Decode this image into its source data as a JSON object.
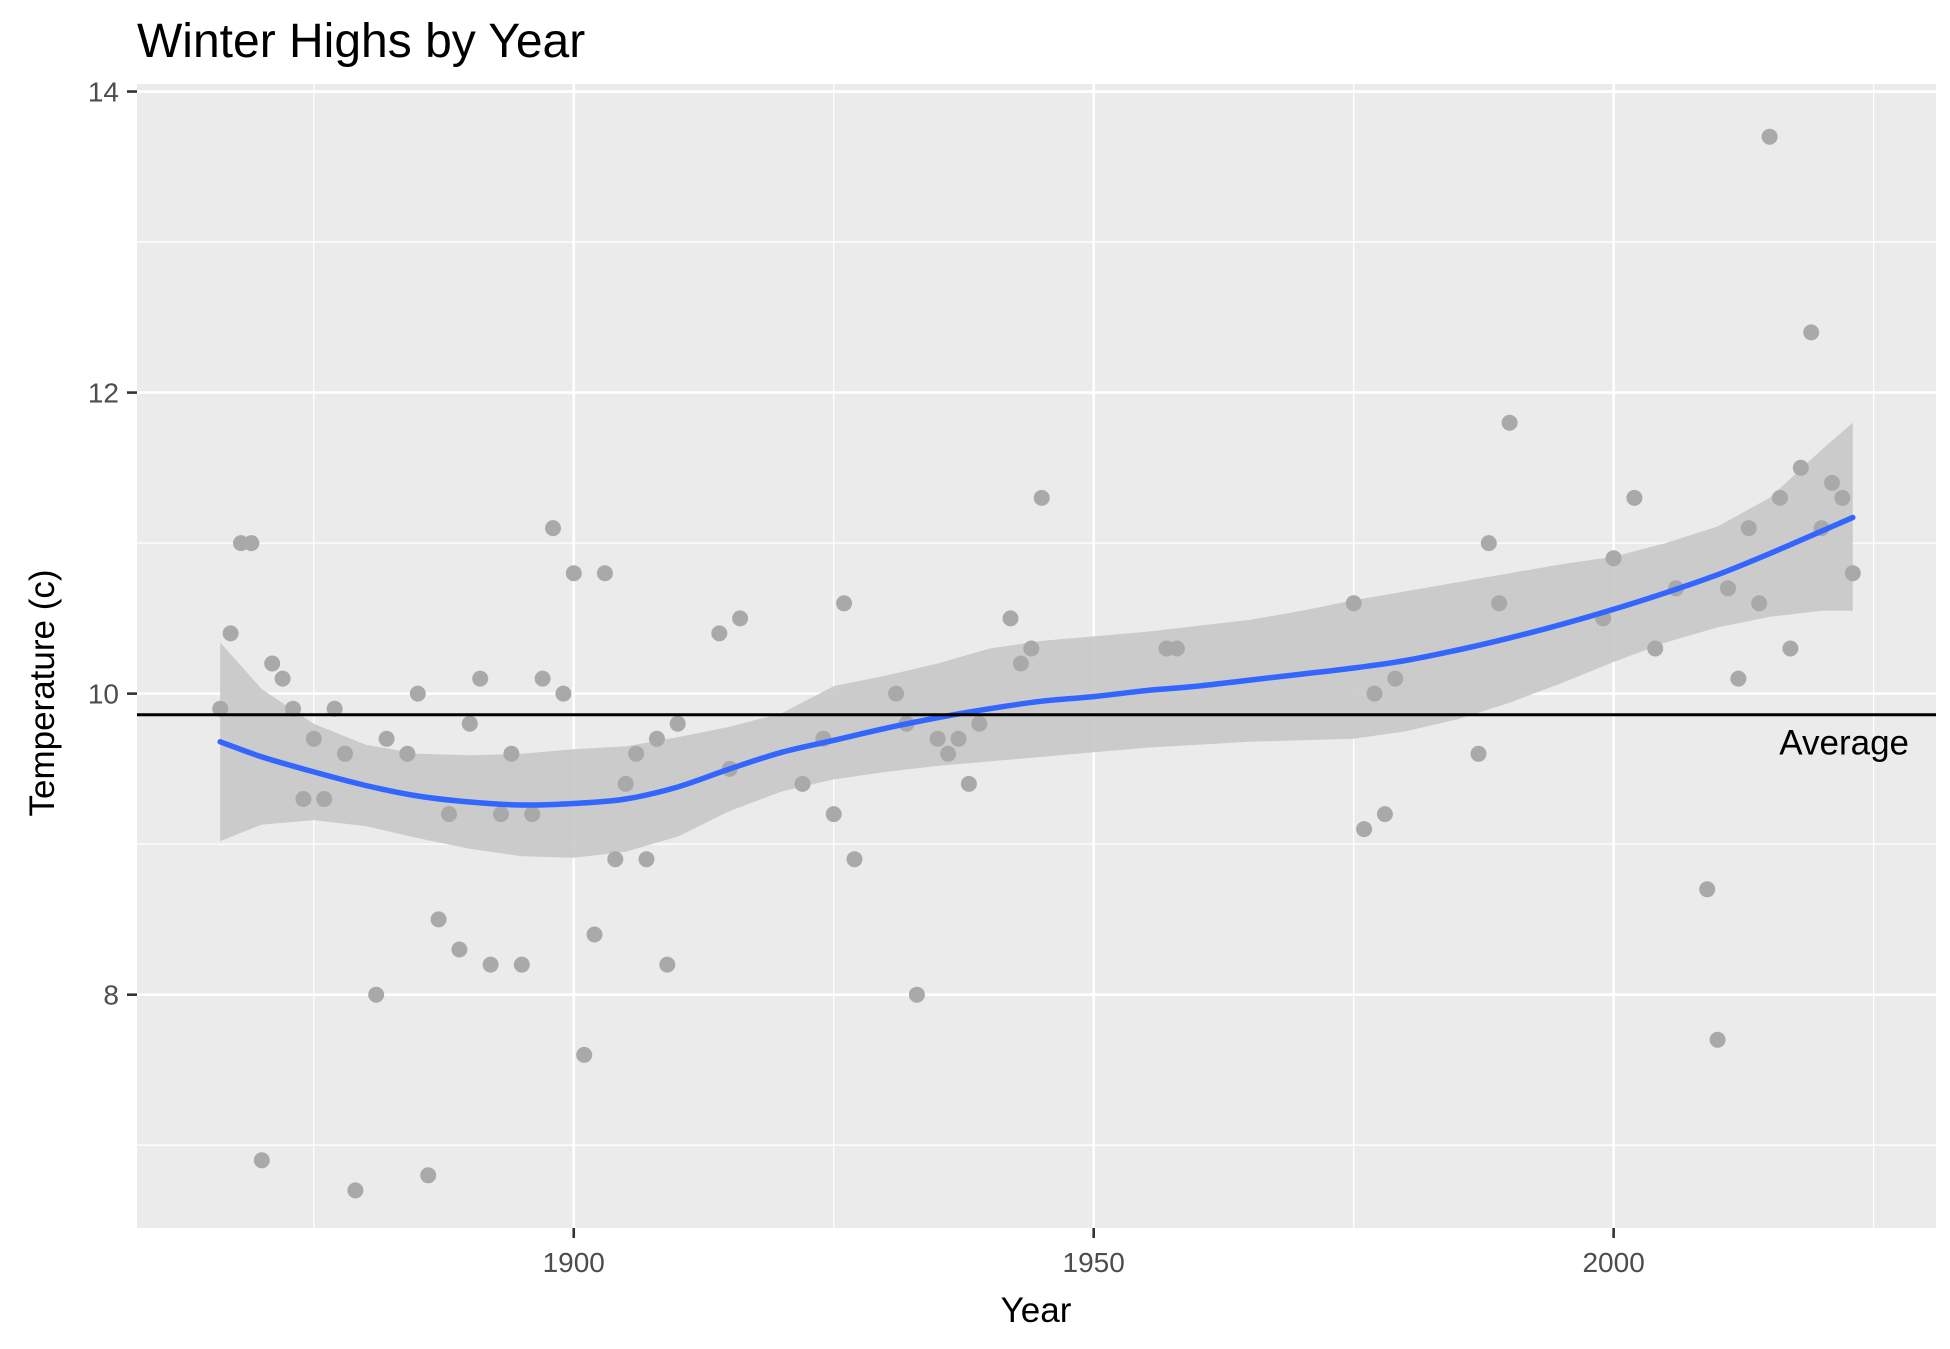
{
  "chart_data": {
    "type": "scatter",
    "title": "Winter Highs by Year",
    "xlabel": "Year",
    "ylabel": "Temperature (c)",
    "xlim": [
      1858,
      2031
    ],
    "ylim": [
      6.45,
      14.05
    ],
    "x_ticks": [
      1900,
      1950,
      2000
    ],
    "x_tick_labels": [
      "1900",
      "1950",
      "2000"
    ],
    "y_ticks": [
      8,
      10,
      12,
      14
    ],
    "y_tick_labels": [
      "8",
      "10",
      "12",
      "14"
    ],
    "grid": true,
    "colors": {
      "panel": "#ebebeb",
      "grid": "#ffffff",
      "points": "#a9a9a9",
      "smooth_line": "#3366ff",
      "ribbon": "#c8c8c8",
      "reference_line": "#000000"
    },
    "series": [
      {
        "type": "scatter",
        "points": [
          [
            1866,
            9.9
          ],
          [
            1867,
            10.4
          ],
          [
            1868,
            11.0
          ],
          [
            1869,
            11.0
          ],
          [
            1870,
            6.9
          ],
          [
            1871,
            10.2
          ],
          [
            1872,
            10.1
          ],
          [
            1873,
            9.9
          ],
          [
            1874,
            9.3
          ],
          [
            1875,
            9.7
          ],
          [
            1876,
            9.3
          ],
          [
            1877,
            9.9
          ],
          [
            1878,
            9.6
          ],
          [
            1879,
            6.7
          ],
          [
            1881,
            8.0
          ],
          [
            1882,
            9.7
          ],
          [
            1884,
            9.6
          ],
          [
            1885,
            10.0
          ],
          [
            1886,
            6.8
          ],
          [
            1887,
            8.5
          ],
          [
            1888,
            9.2
          ],
          [
            1889,
            8.3
          ],
          [
            1890,
            9.8
          ],
          [
            1891,
            10.1
          ],
          [
            1892,
            8.2
          ],
          [
            1893,
            9.2
          ],
          [
            1894,
            9.6
          ],
          [
            1895,
            8.2
          ],
          [
            1896,
            9.2
          ],
          [
            1897,
            10.1
          ],
          [
            1898,
            11.1
          ],
          [
            1899,
            10.0
          ],
          [
            1900,
            10.8
          ],
          [
            1901,
            7.6
          ],
          [
            1902,
            8.4
          ],
          [
            1903,
            10.8
          ],
          [
            1904,
            8.9
          ],
          [
            1905,
            9.4
          ],
          [
            1906,
            9.6
          ],
          [
            1907,
            8.9
          ],
          [
            1908,
            9.7
          ],
          [
            1909,
            8.2
          ],
          [
            1910,
            9.8
          ],
          [
            1914,
            10.4
          ],
          [
            1915,
            9.5
          ],
          [
            1916,
            10.5
          ],
          [
            1922,
            9.4
          ],
          [
            1924,
            9.7
          ],
          [
            1925,
            9.2
          ],
          [
            1926,
            10.6
          ],
          [
            1927,
            8.9
          ],
          [
            1931,
            10.0
          ],
          [
            1932,
            9.8
          ],
          [
            1933,
            8.0
          ],
          [
            1935,
            9.7
          ],
          [
            1936,
            9.6
          ],
          [
            1937,
            9.7
          ],
          [
            1938,
            9.4
          ],
          [
            1939,
            9.8
          ],
          [
            1942,
            10.5
          ],
          [
            1943,
            10.2
          ],
          [
            1944,
            10.3
          ],
          [
            1945,
            11.3
          ],
          [
            1957,
            10.3
          ],
          [
            1958,
            10.3
          ],
          [
            1975,
            10.6
          ],
          [
            1976,
            9.1
          ],
          [
            1977,
            10.0
          ],
          [
            1978,
            9.2
          ],
          [
            1979,
            10.1
          ],
          [
            1987,
            9.6
          ],
          [
            1988,
            11.0
          ],
          [
            1989,
            10.6
          ],
          [
            1990,
            11.8
          ],
          [
            1999,
            10.5
          ],
          [
            2000,
            10.9
          ],
          [
            2002,
            11.3
          ],
          [
            2004,
            10.3
          ],
          [
            2006,
            10.7
          ],
          [
            2009,
            8.7
          ],
          [
            2010,
            7.7
          ],
          [
            2011,
            10.7
          ],
          [
            2012,
            10.1
          ],
          [
            2013,
            11.1
          ],
          [
            2014,
            10.6
          ],
          [
            2015,
            13.7
          ],
          [
            2016,
            11.3
          ],
          [
            2017,
            10.3
          ],
          [
            2018,
            11.5
          ],
          [
            2019,
            12.4
          ],
          [
            2020,
            11.1
          ],
          [
            2021,
            11.4
          ],
          [
            2022,
            11.3
          ],
          [
            2023,
            10.8
          ]
        ]
      },
      {
        "type": "line",
        "smoothed": true,
        "x": [
          1866,
          1870,
          1875,
          1880,
          1885,
          1890,
          1895,
          1900,
          1905,
          1910,
          1915,
          1920,
          1925,
          1930,
          1935,
          1940,
          1945,
          1950,
          1955,
          1960,
          1965,
          1970,
          1975,
          1980,
          1985,
          1990,
          1995,
          2000,
          2005,
          2010,
          2015,
          2020,
          2023
        ],
        "y": [
          9.68,
          9.58,
          9.48,
          9.39,
          9.32,
          9.28,
          9.26,
          9.27,
          9.3,
          9.38,
          9.5,
          9.61,
          9.69,
          9.77,
          9.84,
          9.9,
          9.95,
          9.98,
          10.02,
          10.05,
          10.09,
          10.13,
          10.17,
          10.22,
          10.29,
          10.37,
          10.46,
          10.56,
          10.67,
          10.79,
          10.93,
          11.08,
          11.17
        ],
        "lower": [
          9.02,
          9.13,
          9.16,
          9.12,
          9.04,
          8.97,
          8.92,
          8.91,
          8.95,
          9.05,
          9.22,
          9.35,
          9.43,
          9.48,
          9.52,
          9.55,
          9.58,
          9.61,
          9.64,
          9.66,
          9.68,
          9.69,
          9.7,
          9.75,
          9.83,
          9.94,
          10.07,
          10.21,
          10.34,
          10.44,
          10.51,
          10.55,
          10.55
        ],
        "upper": [
          10.34,
          10.03,
          9.8,
          9.66,
          9.6,
          9.59,
          9.6,
          9.63,
          9.65,
          9.71,
          9.78,
          9.87,
          10.05,
          10.12,
          10.2,
          10.3,
          10.35,
          10.38,
          10.41,
          10.45,
          10.49,
          10.55,
          10.62,
          10.68,
          10.74,
          10.8,
          10.86,
          10.91,
          11.0,
          11.11,
          11.3,
          11.62,
          11.8
        ]
      },
      {
        "type": "hline",
        "y": 9.86,
        "label": "Average"
      }
    ]
  }
}
